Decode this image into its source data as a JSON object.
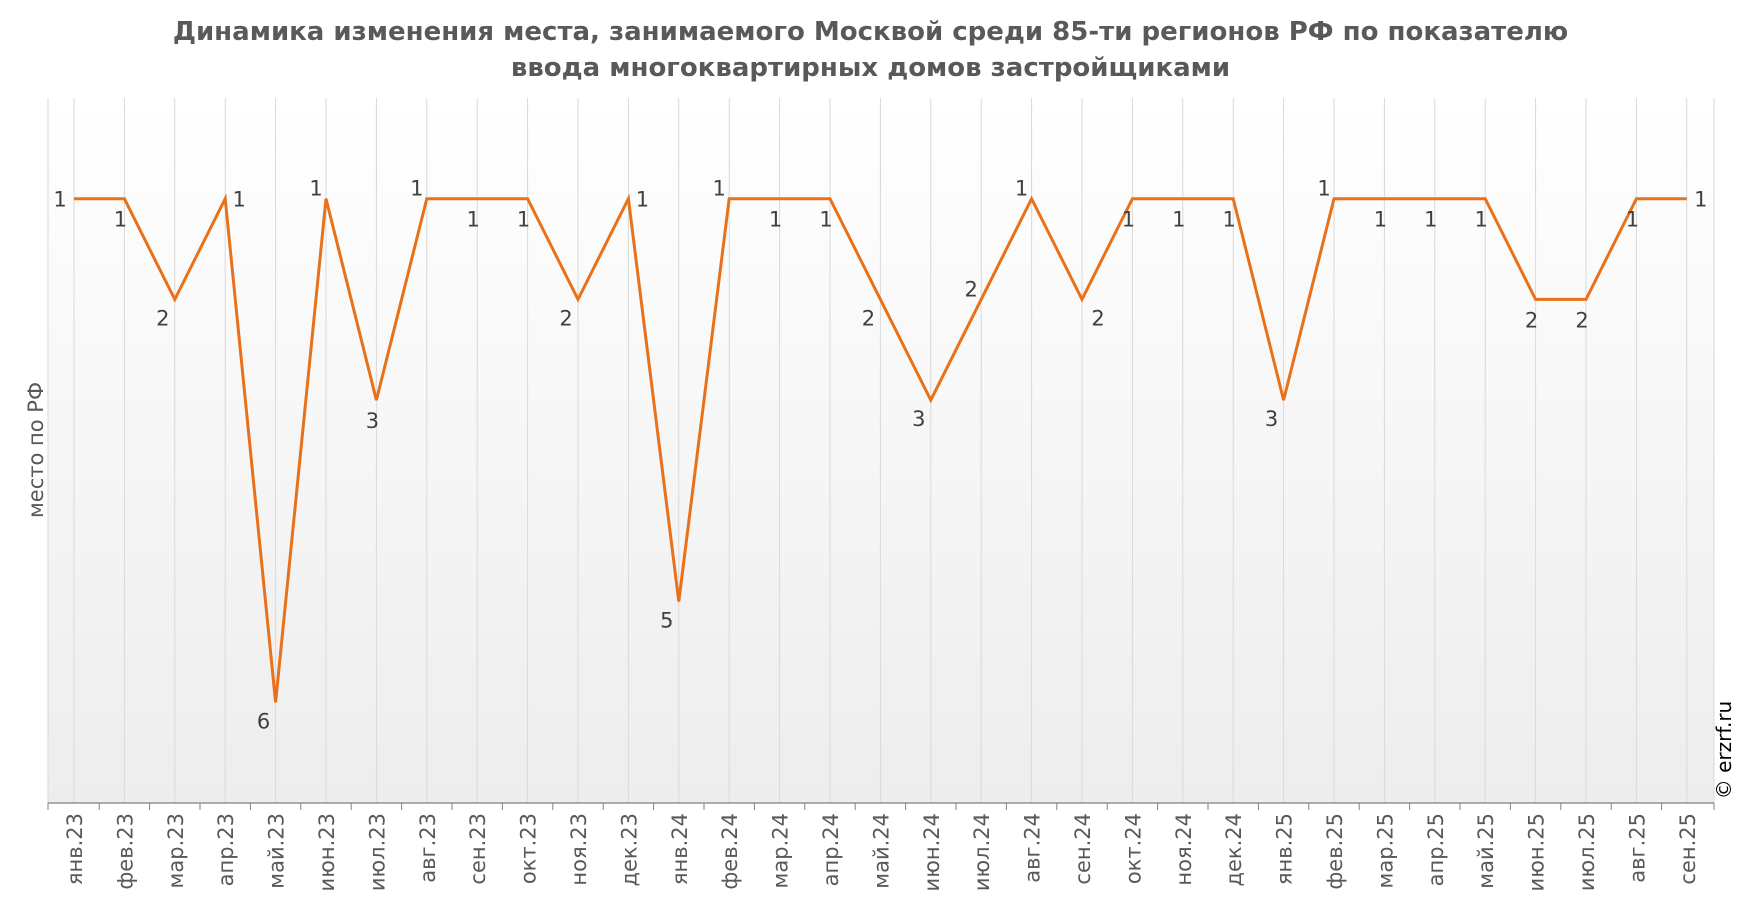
{
  "colors": {
    "line": "#E8711A",
    "grid": "#D9D9D9",
    "axis": "#808080",
    "text": "#595959",
    "label": "#404040",
    "plot_bg_top": "#FFFFFF",
    "plot_bg_bottom": "#EDEDED"
  },
  "chart_data": {
    "type": "line",
    "title_lines": [
      "Динамика изменения места, занимаемого Москвой среди 85-ти регионов РФ по показателю",
      "ввода многоквартирных домов застройщиками"
    ],
    "xlabel": "",
    "ylabel": "место по РФ",
    "y_inverted": true,
    "ylim": [
      0.0,
      7.0
    ],
    "grid": "vertical",
    "categories": [
      "янв.23",
      "фев.23",
      "мар.23",
      "апр.23",
      "май.23",
      "июн.23",
      "июл.23",
      "авг.23",
      "сен.23",
      "окт.23",
      "ноя.23",
      "дек.23",
      "янв.24",
      "фев.24",
      "мар.24",
      "апр.24",
      "май.24",
      "июн.24",
      "июл.24",
      "авг.24",
      "сен.24",
      "окт.24",
      "ноя.24",
      "дек.24",
      "янв.25",
      "фев.25",
      "мар.25",
      "апр.25",
      "май.25",
      "июн.25",
      "июл.25",
      "авг.25",
      "сен.25"
    ],
    "series": [
      {
        "name": "место по РФ",
        "values": [
          1,
          1,
          2,
          1,
          6,
          1,
          3,
          1,
          1,
          1,
          2,
          1,
          5,
          1,
          1,
          1,
          2,
          3,
          2,
          1,
          2,
          1,
          1,
          1,
          3,
          1,
          1,
          1,
          1,
          2,
          2,
          1,
          1
        ],
        "label_pos": [
          "l",
          "b",
          "bl",
          "r",
          "bl",
          "tl",
          "b",
          "tl",
          "b",
          "b",
          "bl",
          "r",
          "bl",
          "tl",
          "b",
          "b",
          "bl",
          "bl",
          "tl",
          "tl",
          "br",
          "b",
          "b",
          "b",
          "bl",
          "tl",
          "b",
          "b",
          "b",
          "b",
          "b",
          "b",
          "r"
        ]
      }
    ]
  },
  "watermark": "© erzrf.ru"
}
